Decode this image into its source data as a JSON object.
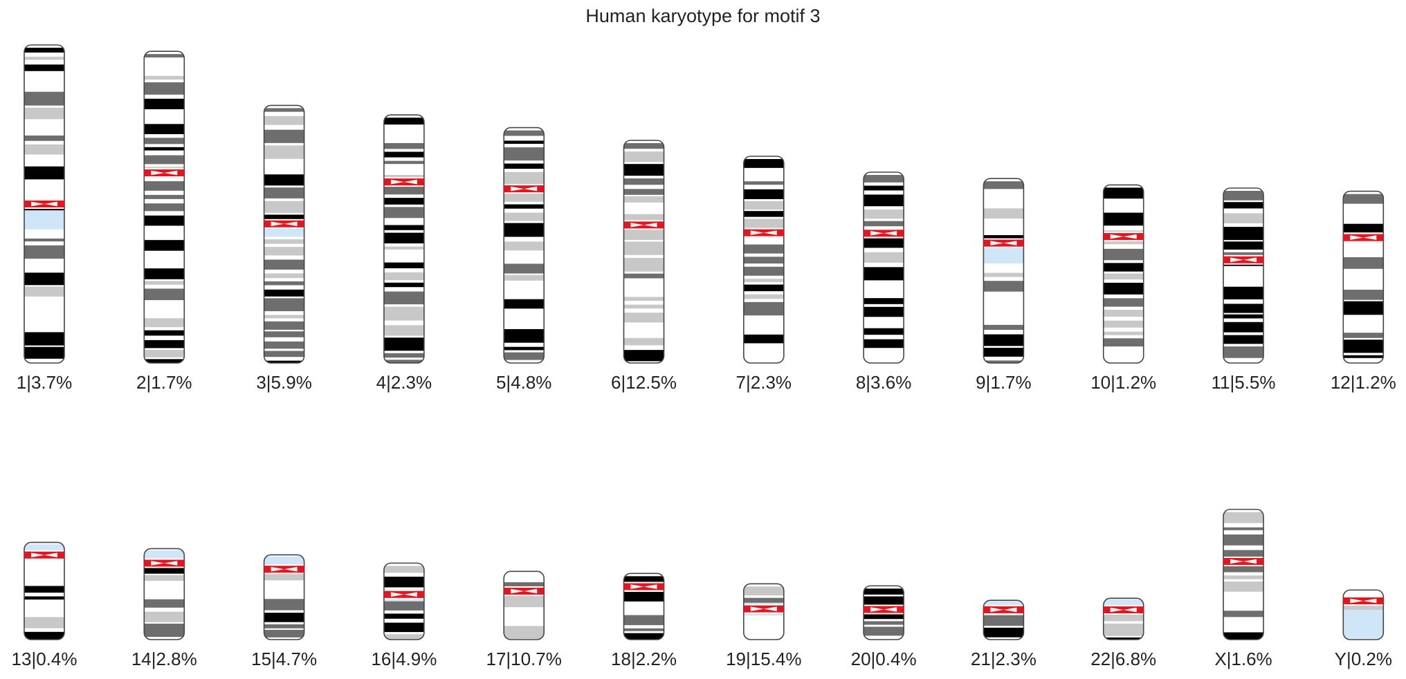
{
  "title": "Human karyotype for motif 3",
  "colors": {
    "centromere": "#e8141d",
    "heterochromatin": "#cfe6f8",
    "outline": "#444444",
    "band_dark": "#000000",
    "band_mid": "#6e6e6e",
    "band_light": "#c8c8c8",
    "band_white": "#ffffff"
  },
  "chromosomes": [
    {
      "name": "1",
      "percent": "3.7%",
      "label": "1|3.7%",
      "row": 0,
      "length": 100,
      "centromere": 0.5,
      "blue": [
        0.52,
        0.58
      ],
      "seed": 11
    },
    {
      "name": "2",
      "percent": "1.7%",
      "label": "2|1.7%",
      "row": 0,
      "length": 98,
      "centromere": 0.39,
      "seed": 23
    },
    {
      "name": "3",
      "percent": "5.9%",
      "label": "3|5.9%",
      "row": 0,
      "length": 81,
      "centromere": 0.46,
      "blue": [
        0.47,
        0.51
      ],
      "seed": 37
    },
    {
      "name": "4",
      "percent": "2.3%",
      "label": "4|2.3%",
      "row": 0,
      "length": 78,
      "centromere": 0.27,
      "seed": 41
    },
    {
      "name": "5",
      "percent": "4.8%",
      "label": "5|4.8%",
      "row": 0,
      "length": 74,
      "centromere": 0.26,
      "seed": 53
    },
    {
      "name": "6",
      "percent": "12.5%",
      "label": "6|12.5%",
      "row": 0,
      "length": 70,
      "centromere": 0.38,
      "seed": 67
    },
    {
      "name": "7",
      "percent": "2.3%",
      "label": "7|2.3%",
      "row": 0,
      "length": 65,
      "centromere": 0.37,
      "seed": 71
    },
    {
      "name": "8",
      "percent": "3.6%",
      "label": "8|3.6%",
      "row": 0,
      "length": 60,
      "centromere": 0.32,
      "seed": 83
    },
    {
      "name": "9",
      "percent": "1.7%",
      "label": "9|1.7%",
      "row": 0,
      "length": 58,
      "centromere": 0.35,
      "blue": [
        0.37,
        0.46
      ],
      "seed": 97
    },
    {
      "name": "10",
      "percent": "1.2%",
      "label": "10|1.2%",
      "row": 0,
      "length": 56,
      "centromere": 0.29,
      "seed": 101
    },
    {
      "name": "11",
      "percent": "5.5%",
      "label": "11|5.5%",
      "row": 0,
      "length": 55,
      "centromere": 0.41,
      "seed": 113
    },
    {
      "name": "12",
      "percent": "1.2%",
      "label": "12|1.2%",
      "row": 0,
      "length": 54,
      "centromere": 0.27,
      "seed": 127
    },
    {
      "name": "13",
      "percent": "0.4%",
      "label": "13|0.4%",
      "row": 1,
      "length": 47,
      "centromere": 0.13,
      "blue": [
        0.02,
        0.11
      ],
      "seed": 131
    },
    {
      "name": "14",
      "percent": "2.8%",
      "label": "14|2.8%",
      "row": 1,
      "length": 44,
      "centromere": 0.16,
      "blue": [
        0.02,
        0.13
      ],
      "seed": 139
    },
    {
      "name": "15",
      "percent": "4.7%",
      "label": "15|4.7%",
      "row": 1,
      "length": 41,
      "centromere": 0.17,
      "blue": [
        0.02,
        0.13
      ],
      "seed": 149
    },
    {
      "name": "16",
      "percent": "4.9%",
      "label": "16|4.9%",
      "row": 1,
      "length": 37,
      "centromere": 0.41,
      "blue": [
        0.44,
        0.5
      ],
      "seed": 151
    },
    {
      "name": "17",
      "percent": "10.7%",
      "label": "17|10.7%",
      "row": 1,
      "length": 33,
      "centromere": 0.29,
      "seed": 163
    },
    {
      "name": "18",
      "percent": "2.2%",
      "label": "18|2.2%",
      "row": 1,
      "length": 32,
      "centromere": 0.2,
      "seed": 173
    },
    {
      "name": "19",
      "percent": "15.4%",
      "label": "19|15.4%",
      "row": 1,
      "length": 27,
      "centromere": 0.45,
      "blue": [
        0.34,
        0.57
      ],
      "seed": 181
    },
    {
      "name": "20",
      "percent": "0.4%",
      "label": "20|0.4%",
      "row": 1,
      "length": 26,
      "centromere": 0.44,
      "seed": 191
    },
    {
      "name": "21",
      "percent": "2.3%",
      "label": "21|2.3%",
      "row": 1,
      "length": 19,
      "centromere": 0.24,
      "blue": [
        0.02,
        0.2
      ],
      "seed": 193
    },
    {
      "name": "22",
      "percent": "6.8%",
      "label": "22|6.8%",
      "row": 1,
      "length": 20,
      "centromere": 0.28,
      "blue": [
        0.02,
        0.2
      ],
      "seed": 197
    },
    {
      "name": "X",
      "percent": "1.6%",
      "label": "X|1.6%",
      "row": 1,
      "length": 63,
      "centromere": 0.4,
      "seed": 211
    },
    {
      "name": "Y",
      "percent": "0.2%",
      "label": "Y|0.2%",
      "row": 1,
      "length": 24,
      "centromere": 0.22,
      "blue": [
        0.4,
        0.98
      ],
      "seed": 223
    }
  ]
}
